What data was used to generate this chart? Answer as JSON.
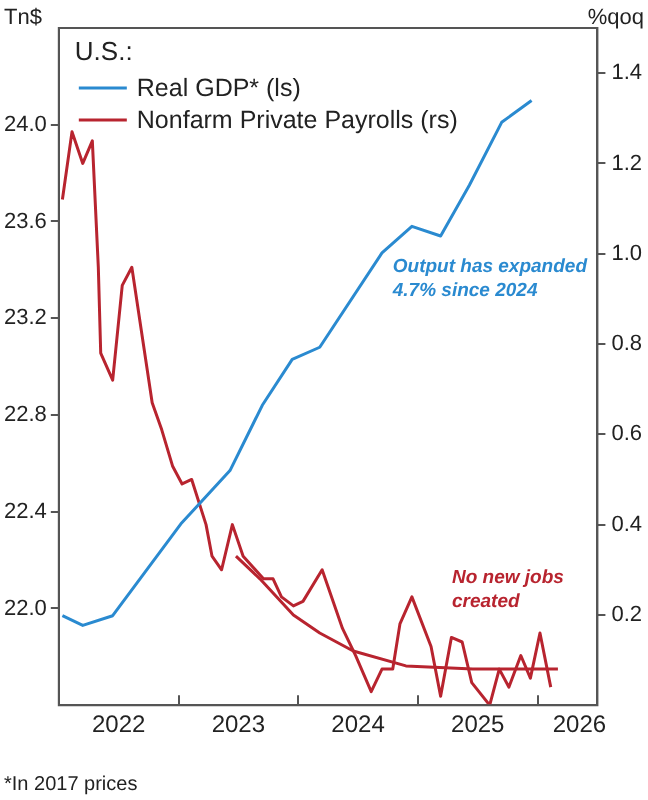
{
  "chart_data": {
    "type": "line",
    "title": "U.S.:",
    "ylabel": "Tn$",
    "y2label": "%qoq",
    "legend": "top left",
    "grid": false,
    "marker": "none",
    "line_style": "solid",
    "xlim": [
      2022,
      2026.5
    ],
    "xticks": [
      {
        "value": 2022,
        "label": null
      },
      {
        "value": 2022.5,
        "label": "2022"
      },
      {
        "value": 2023,
        "label": null
      },
      {
        "value": 2023.5,
        "label": "2023"
      },
      {
        "value": 2024,
        "label": null
      },
      {
        "value": 2024.5,
        "label": "2024"
      },
      {
        "value": 2025,
        "label": null
      },
      {
        "value": 2025.5,
        "label": "2025"
      },
      {
        "value": 2026,
        "label": null
      },
      {
        "value": 2026.35,
        "label": "2026"
      }
    ],
    "ylim": [
      21.6,
      24.4
    ],
    "yticks": [
      {
        "value": 22,
        "label": "22.0"
      },
      22.4,
      22.8,
      23.2,
      23.6,
      {
        "value": 24,
        "label": "24.0"
      }
    ],
    "y2lim": [
      0,
      1.5
    ],
    "y2ticks": [
      0.2,
      0.4,
      0.6,
      0.8,
      {
        "value": 1,
        "label": "1.0"
      },
      1.2,
      1.4
    ],
    "series": [
      {
        "name": "Real GDP* (ls)",
        "color": "#2a8ad0",
        "x": [
          2022.03,
          2022.2,
          2022.45,
          2023.02,
          2023.43,
          2023.7,
          2023.95,
          2024.18,
          2024.7,
          2024.95,
          2025.19,
          2025.43,
          2025.7,
          2025.95
        ],
        "values": [
          21.97,
          21.93,
          21.97,
          22.35,
          22.57,
          22.84,
          23.03,
          23.08,
          23.47,
          23.58,
          23.54,
          23.75,
          24.01,
          24.1
        ]
      },
      {
        "name": "Nonfarm Private Payrolls (rs)",
        "color": "#b8242f",
        "axis": "y2",
        "x": [
          2022.03,
          2022.11,
          2022.2,
          2022.28,
          2022.33,
          2022.35,
          2022.45,
          2022.53,
          2022.61,
          2022.78,
          2022.86,
          2022.95,
          2023.03,
          2023.11,
          2023.23,
          2023.28,
          2023.36,
          2023.45,
          2023.54,
          2023.71,
          2023.79,
          2023.86,
          2023.96,
          2024.04,
          2024.2,
          2024.37,
          2024.48,
          2024.61,
          2024.7,
          2024.79,
          2024.85,
          2024.95,
          2025.11,
          2025.19,
          2025.28,
          2025.37,
          2025.45,
          2025.6,
          2025.68,
          2025.76,
          2025.86,
          2025.94,
          2026.02,
          2026.11
        ],
        "values": [
          1.12,
          1.27,
          1.2,
          1.25,
          0.97,
          0.78,
          0.72,
          0.93,
          0.97,
          0.67,
          0.61,
          0.53,
          0.49,
          0.5,
          0.4,
          0.33,
          0.3,
          0.4,
          0.33,
          0.28,
          0.28,
          0.24,
          0.22,
          0.23,
          0.3,
          0.17,
          0.11,
          0.03,
          0.08,
          0.08,
          0.18,
          0.24,
          0.13,
          0.02,
          0.15,
          0.14,
          0.05,
          0.0,
          0.08,
          0.04,
          0.11,
          0.06,
          0.16,
          0.04
        ]
      },
      {
        "type": "line",
        "color": "#b8242f",
        "axis": "y2",
        "x": [
          2023.48,
          2023.68,
          2023.96,
          2024.18,
          2024.46,
          2024.9,
          2025.46,
          2026.17
        ],
        "values": [
          0.33,
          0.28,
          0.2,
          0.16,
          0.12,
          0.087,
          0.08,
          0.08
        ]
      }
    ],
    "annotations": [
      "Output has expanded\n4.7% since 2024",
      "No new jobs\ncreated",
      "*In 2017 prices"
    ]
  }
}
